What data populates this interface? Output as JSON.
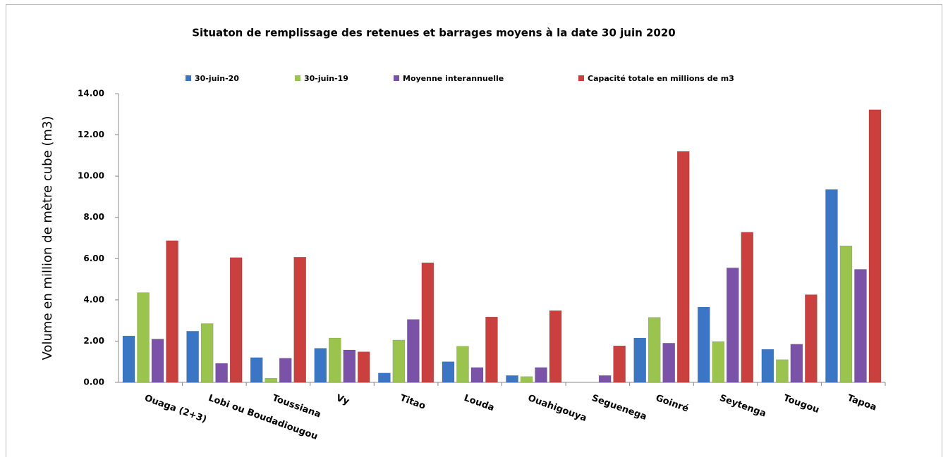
{
  "chart_data": {
    "type": "bar",
    "title": "Situaton de remplissage des retenues et barrages moyens à la date 30 juin 2020",
    "y_label": "Volume en million de mètre cube (m3)",
    "categories": [
      "Ouaga (2+3)",
      "Lobi ou Boudadiougou",
      "Toussiana",
      "Vy",
      "Titao",
      "Louda",
      "Ouahigouya",
      "Seguenega",
      "Goinré",
      "Seytenga",
      "Tougou",
      "Tapoa"
    ],
    "series": [
      {
        "name": "30-juin-20",
        "color": "#3a76c4",
        "values": [
          2.25,
          2.48,
          1.2,
          1.65,
          0.45,
          1.0,
          0.33,
          0,
          2.15,
          3.65,
          1.6,
          9.35
        ]
      },
      {
        "name": "30-juin-19",
        "color": "#9bc44f",
        "values": [
          4.35,
          2.85,
          0.2,
          2.15,
          2.05,
          1.75,
          0.28,
          0,
          3.15,
          1.98,
          1.1,
          6.62
        ]
      },
      {
        "name": "Moyenne interannuelle",
        "color": "#7a52a8",
        "values": [
          2.1,
          0.92,
          1.17,
          1.57,
          3.05,
          0.72,
          0.72,
          0.33,
          1.9,
          5.55,
          1.85,
          5.48
        ]
      },
      {
        "name": "Capacité totale en millions de m3",
        "color": "#c9403e",
        "values": [
          6.87,
          6.05,
          6.07,
          1.48,
          5.8,
          3.17,
          3.48,
          1.77,
          11.2,
          7.28,
          4.25,
          13.22
        ]
      }
    ],
    "ylim": [
      0,
      14
    ],
    "yticks": [
      {
        "value": 0,
        "label": "0.00"
      },
      {
        "value": 2,
        "label": "2.00"
      },
      {
        "value": 4,
        "label": "4.00"
      },
      {
        "value": 6,
        "label": "6.00"
      },
      {
        "value": 8,
        "label": "8.00"
      },
      {
        "value": 10,
        "label": "10.00"
      },
      {
        "value": 12,
        "label": "12.00"
      },
      {
        "value": 14,
        "label": "14.00"
      }
    ],
    "legend": "top",
    "grid": false
  }
}
